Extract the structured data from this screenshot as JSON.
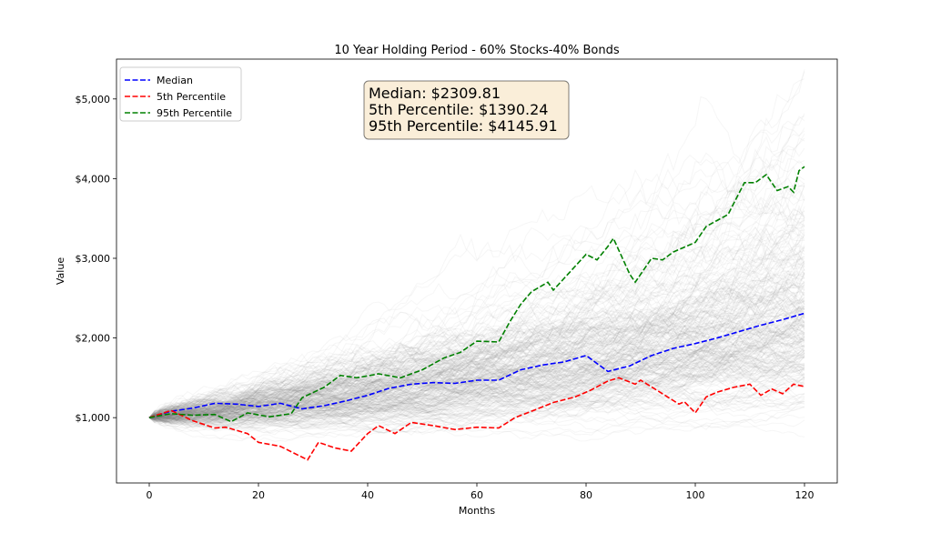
{
  "chart_data": {
    "type": "line",
    "title": "10 Year Holding Period - 60% Stocks-40% Bonds",
    "xlabel": "Months",
    "ylabel": "Value",
    "xlim": [
      -6,
      126
    ],
    "ylim": [
      180,
      5500
    ],
    "x_ticks": [
      0,
      20,
      40,
      60,
      80,
      100,
      120
    ],
    "x_tick_labels": [
      "0",
      "20",
      "40",
      "60",
      "80",
      "100",
      "120"
    ],
    "y_ticks": [
      1000,
      2000,
      3000,
      4000,
      5000
    ],
    "y_tick_labels": [
      "$1,000",
      "$2,000",
      "$3,000",
      "$4,000",
      "$5,000"
    ],
    "grid": false,
    "legend_placement": "top-left",
    "simulations": {
      "count": 300,
      "start_value": 1000,
      "months": 120,
      "color": "#808080"
    },
    "series": [
      {
        "name": "Median",
        "color": "#0000ff",
        "x": [
          0,
          4,
          8,
          12,
          16,
          20,
          24,
          28,
          32,
          36,
          40,
          44,
          48,
          52,
          56,
          60,
          64,
          68,
          72,
          76,
          80,
          84,
          88,
          92,
          96,
          100,
          104,
          108,
          112,
          116,
          120
        ],
        "values": [
          1000,
          1080,
          1120,
          1180,
          1170,
          1140,
          1180,
          1110,
          1150,
          1210,
          1280,
          1370,
          1420,
          1440,
          1430,
          1470,
          1470,
          1600,
          1660,
          1700,
          1780,
          1580,
          1650,
          1780,
          1870,
          1930,
          2000,
          2080,
          2160,
          2230,
          2310
        ]
      },
      {
        "name": "5th Percentile",
        "color": "#ff0000",
        "x": [
          0,
          4,
          8,
          12,
          14,
          18,
          20,
          24,
          29,
          31,
          34,
          37,
          40,
          42,
          45,
          48,
          52,
          56,
          60,
          64,
          67,
          70,
          74,
          78,
          81,
          84,
          86,
          89,
          90,
          94,
          97,
          98,
          100,
          102,
          104,
          107,
          110,
          112,
          114,
          116,
          118,
          120
        ],
        "values": [
          1000,
          1090,
          960,
          870,
          880,
          800,
          690,
          640,
          470,
          690,
          620,
          580,
          800,
          900,
          800,
          940,
          900,
          850,
          880,
          870,
          1000,
          1080,
          1190,
          1260,
          1350,
          1460,
          1500,
          1420,
          1470,
          1300,
          1170,
          1200,
          1060,
          1260,
          1320,
          1380,
          1420,
          1280,
          1360,
          1300,
          1420,
          1390
        ]
      },
      {
        "name": "95th Percentile",
        "color": "#008000",
        "x": [
          0,
          4,
          8,
          12,
          15,
          18,
          22,
          26,
          28,
          32,
          35,
          38,
          42,
          46,
          50,
          54,
          57,
          60,
          64,
          66,
          68,
          70,
          73,
          74,
          76,
          80,
          82,
          84,
          85,
          88,
          89,
          92,
          94,
          96,
          100,
          102,
          106,
          109,
          111,
          113,
          115,
          117,
          118,
          119,
          120
        ],
        "values": [
          1000,
          1050,
          1030,
          1040,
          950,
          1060,
          1010,
          1050,
          1250,
          1380,
          1530,
          1500,
          1550,
          1500,
          1600,
          1750,
          1820,
          1960,
          1950,
          2200,
          2420,
          2580,
          2700,
          2600,
          2750,
          3050,
          2980,
          3150,
          3250,
          2800,
          2700,
          3000,
          2980,
          3080,
          3200,
          3400,
          3550,
          3950,
          3950,
          4050,
          3850,
          3900,
          3830,
          4100,
          4150
        ]
      }
    ],
    "annotation": {
      "lines": [
        "Median: $2309.81",
        "5th Percentile: $1390.24",
        "95th Percentile: $4145.91"
      ],
      "background": "#f5deb3"
    }
  }
}
